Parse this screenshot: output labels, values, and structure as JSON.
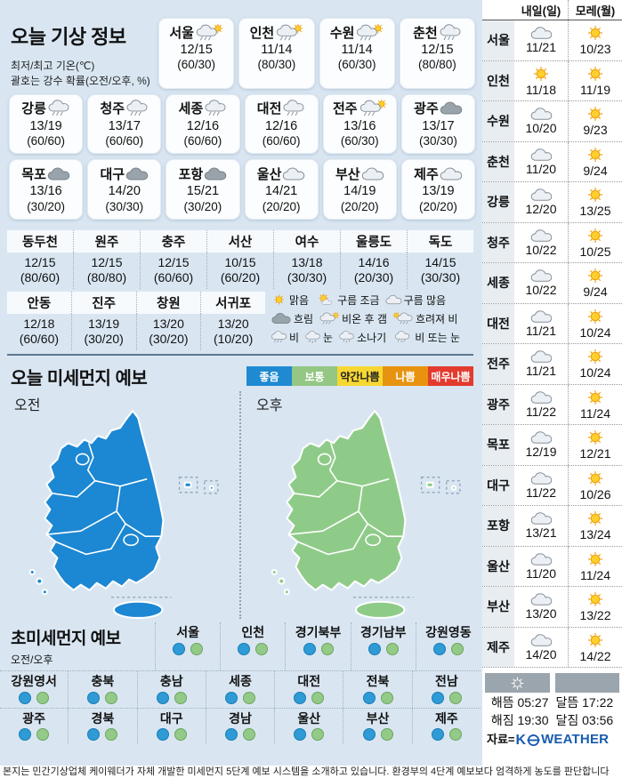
{
  "header": {
    "title": "오늘 기상 정보",
    "note1": "최저/최고 기온(℃)",
    "note2": "괄호는 강수 확률(오전/오후, %)"
  },
  "city_cards": {
    "row1": [
      {
        "name": "서울",
        "icon": "rain-sun",
        "temp": "12/15",
        "prob": "(60/30)"
      },
      {
        "name": "인천",
        "icon": "rain-sun",
        "temp": "11/14",
        "prob": "(80/30)"
      },
      {
        "name": "수원",
        "icon": "rain-sun",
        "temp": "11/14",
        "prob": "(60/30)"
      },
      {
        "name": "춘천",
        "icon": "rain",
        "temp": "12/15",
        "prob": "(80/80)"
      }
    ],
    "row2": [
      {
        "name": "강릉",
        "icon": "rain",
        "temp": "13/19",
        "prob": "(60/60)"
      },
      {
        "name": "청주",
        "icon": "rain",
        "temp": "13/17",
        "prob": "(60/60)"
      },
      {
        "name": "세종",
        "icon": "rain",
        "temp": "12/16",
        "prob": "(60/60)"
      },
      {
        "name": "대전",
        "icon": "rain",
        "temp": "12/16",
        "prob": "(60/60)"
      },
      {
        "name": "전주",
        "icon": "rain-sun",
        "temp": "13/16",
        "prob": "(60/30)"
      },
      {
        "name": "광주",
        "icon": "cloud-dark",
        "temp": "13/17",
        "prob": "(30/30)"
      }
    ],
    "row3": [
      {
        "name": "목포",
        "icon": "cloud-dark",
        "temp": "13/16",
        "prob": "(30/20)"
      },
      {
        "name": "대구",
        "icon": "cloud-dark",
        "temp": "14/20",
        "prob": "(30/30)"
      },
      {
        "name": "포항",
        "icon": "cloud-dark",
        "temp": "15/21",
        "prob": "(30/20)"
      },
      {
        "name": "울산",
        "icon": "cloud",
        "temp": "14/21",
        "prob": "(20/20)"
      },
      {
        "name": "부산",
        "icon": "cloud",
        "temp": "14/19",
        "prob": "(20/20)"
      },
      {
        "name": "제주",
        "icon": "cloud",
        "temp": "13/19",
        "prob": "(20/20)"
      }
    ]
  },
  "table1": [
    {
      "name": "동두천",
      "temp": "12/15",
      "prob": "(80/60)"
    },
    {
      "name": "원주",
      "temp": "12/15",
      "prob": "(80/80)"
    },
    {
      "name": "충주",
      "temp": "12/15",
      "prob": "(60/60)"
    },
    {
      "name": "서산",
      "temp": "10/15",
      "prob": "(60/20)"
    },
    {
      "name": "여수",
      "temp": "13/18",
      "prob": "(30/30)"
    },
    {
      "name": "울릉도",
      "temp": "14/16",
      "prob": "(20/30)"
    },
    {
      "name": "독도",
      "temp": "14/15",
      "prob": "(30/30)"
    }
  ],
  "table2": [
    {
      "name": "안동",
      "temp": "12/18",
      "prob": "(60/60)"
    },
    {
      "name": "진주",
      "temp": "13/19",
      "prob": "(30/20)"
    },
    {
      "name": "창원",
      "temp": "13/20",
      "prob": "(30/20)"
    },
    {
      "name": "서귀포",
      "temp": "13/20",
      "prob": "(10/20)"
    }
  ],
  "weather_legend": [
    [
      {
        "icon": "sun",
        "label": "맑음"
      },
      {
        "icon": "sun-cloud",
        "label": "구름 조금"
      },
      {
        "icon": "cloud",
        "label": "구름 많음"
      }
    ],
    [
      {
        "icon": "cloud-dark",
        "label": "흐림"
      },
      {
        "icon": "rain-sun",
        "label": "비온 후 갬"
      },
      {
        "icon": "sun-rain",
        "label": "흐려져 비"
      }
    ],
    [
      {
        "icon": "rain",
        "label": "비"
      },
      {
        "icon": "snow",
        "label": "눈"
      },
      {
        "icon": "shower",
        "label": "소나기"
      },
      {
        "icon": "rain-snow",
        "label": "비 또는 눈"
      }
    ]
  ],
  "dust": {
    "title": "오늘 미세먼지 예보",
    "levels": [
      {
        "label": "좋음",
        "bg": "#1f8ad2",
        "fg": "#ffffff"
      },
      {
        "label": "보통",
        "bg": "#93c783",
        "fg": "#ffffff"
      },
      {
        "label": "약간나쁨",
        "bg": "#f7d833",
        "fg": "#222222"
      },
      {
        "label": "나쁨",
        "bg": "#e8930f",
        "fg": "#ffffff"
      },
      {
        "label": "매우나쁨",
        "bg": "#e23b2e",
        "fg": "#ffffff"
      }
    ],
    "maps": [
      {
        "label": "오전",
        "level": "좋음",
        "color": "#1c87d2"
      },
      {
        "label": "오후",
        "level": "보통",
        "color": "#8fcb88"
      }
    ]
  },
  "fine_dust": {
    "title": "초미세먼지 예보",
    "sub": "오전/오후",
    "am_color": "#2e9bd6",
    "pm_color": "#94ca88",
    "rows": [
      [
        {
          "name": "서울",
          "am": "좋음",
          "pm": "보통"
        },
        {
          "name": "인천",
          "am": "좋음",
          "pm": "보통"
        },
        {
          "name": "경기북부",
          "am": "좋음",
          "pm": "보통"
        },
        {
          "name": "경기남부",
          "am": "좋음",
          "pm": "보통"
        },
        {
          "name": "강원영동",
          "am": "좋음",
          "pm": "보통"
        }
      ],
      [
        {
          "name": "강원영서",
          "am": "좋음",
          "pm": "보통"
        },
        {
          "name": "충북",
          "am": "좋음",
          "pm": "보통"
        },
        {
          "name": "충남",
          "am": "좋음",
          "pm": "보통"
        },
        {
          "name": "세종",
          "am": "좋음",
          "pm": "보통"
        },
        {
          "name": "대전",
          "am": "좋음",
          "pm": "보통"
        },
        {
          "name": "전북",
          "am": "좋음",
          "pm": "보통"
        },
        {
          "name": "전남",
          "am": "좋음",
          "pm": "보통"
        }
      ],
      [
        {
          "name": "광주",
          "am": "좋음",
          "pm": "보통"
        },
        {
          "name": "경북",
          "am": "좋음",
          "pm": "보통"
        },
        {
          "name": "대구",
          "am": "좋음",
          "pm": "보통"
        },
        {
          "name": "경남",
          "am": "좋음",
          "pm": "보통"
        },
        {
          "name": "울산",
          "am": "좋음",
          "pm": "보통"
        },
        {
          "name": "부산",
          "am": "좋음",
          "pm": "보통"
        },
        {
          "name": "제주",
          "am": "좋음",
          "pm": "보통"
        }
      ]
    ]
  },
  "sidebar": {
    "col1": "내일(일)",
    "col2": "모레(월)",
    "rows": [
      {
        "city": "서울",
        "icon1": "cloud",
        "temp1": "11/21",
        "icon2": "sun",
        "temp2": "10/23"
      },
      {
        "city": "인천",
        "icon1": "sun",
        "temp1": "11/18",
        "icon2": "sun",
        "temp2": "11/19"
      },
      {
        "city": "수원",
        "icon1": "cloud",
        "temp1": "10/20",
        "icon2": "sun",
        "temp2": "9/23"
      },
      {
        "city": "춘천",
        "icon1": "cloud",
        "temp1": "11/20",
        "icon2": "sun",
        "temp2": "9/24"
      },
      {
        "city": "강릉",
        "icon1": "cloud",
        "temp1": "12/20",
        "icon2": "sun",
        "temp2": "13/25"
      },
      {
        "city": "청주",
        "icon1": "cloud",
        "temp1": "10/22",
        "icon2": "sun",
        "temp2": "10/25"
      },
      {
        "city": "세종",
        "icon1": "cloud",
        "temp1": "10/22",
        "icon2": "sun",
        "tem2": "",
        "temp2": "9/24"
      },
      {
        "city": "대전",
        "icon1": "cloud",
        "temp1": "11/21",
        "icon2": "sun",
        "temp2": "10/24"
      },
      {
        "city": "전주",
        "icon1": "cloud",
        "temp1": "11/21",
        "icon2": "sun",
        "temp2": "10/24"
      },
      {
        "city": "광주",
        "icon1": "cloud",
        "temp1": "11/22",
        "icon2": "sun",
        "temp2": "11/24"
      },
      {
        "city": "목포",
        "icon1": "cloud",
        "temp1": "12/19",
        "icon2": "sun",
        "temp2": "12/21"
      },
      {
        "city": "대구",
        "icon1": "cloud",
        "temp1": "11/22",
        "icon2": "sun",
        "temp2": "10/26"
      },
      {
        "city": "포항",
        "icon1": "cloud",
        "temp1": "13/21",
        "icon2": "sun",
        "temp2": "13/24"
      },
      {
        "city": "울산",
        "icon1": "cloud",
        "temp1": "11/20",
        "icon2": "sun",
        "temp2": "11/24"
      },
      {
        "city": "부산",
        "icon1": "cloud",
        "temp1": "13/20",
        "icon2": "sun",
        "temp2": "13/22"
      },
      {
        "city": "제주",
        "icon1": "cloud",
        "temp1": "14/20",
        "icon2": "sun",
        "temp2": "14/22"
      }
    ],
    "sun": {
      "rise_label": "해뜸",
      "rise": "05:27",
      "set_label": "해짐",
      "set": "19:30"
    },
    "moon": {
      "rise_label": "달뜸",
      "rise": "17:22",
      "set_label": "달짐",
      "set": "03:56"
    },
    "source_label": "자료=",
    "brand_k": "K",
    "brand": "WEATHER"
  },
  "footer": {
    "text": "본지는 민간기상업체 케이웨더가 자체 개발한 미세먼지 5단계 예보 시스템을 소개하고 있습니다. 환경부의 4단계 예보보다 엄격하게 농도를 판단합니다"
  }
}
